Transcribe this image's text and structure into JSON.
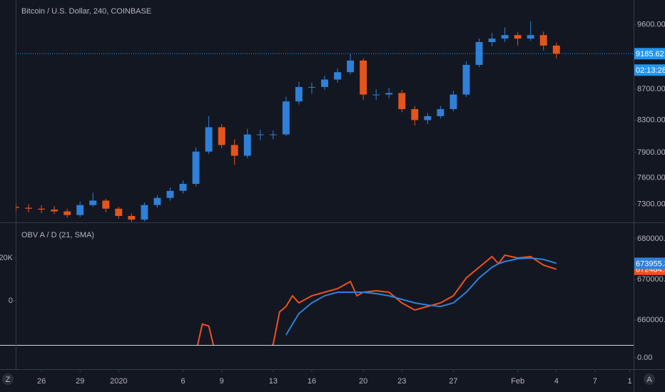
{
  "chart_data": [
    {
      "type": "candlestick",
      "title": "Bitcoin / U.S. Dollar, 240, COINBASE",
      "log_scale": true,
      "up_color": "#2f80d8",
      "down_color": "#e5541b",
      "x": [
        -2,
        -1,
        0,
        1,
        2,
        3,
        4,
        5,
        6,
        7,
        8,
        9,
        10,
        11,
        12,
        13,
        14,
        15,
        16,
        17,
        18,
        19,
        20,
        21,
        22,
        23,
        24,
        25,
        26,
        27,
        28,
        29,
        30,
        31,
        32,
        33,
        34,
        35,
        36,
        37,
        38,
        39,
        40
      ],
      "open": [
        7270,
        7260,
        7250,
        7240,
        7220,
        7180,
        7290,
        7340,
        7250,
        7170,
        7130,
        7290,
        7370,
        7450,
        7530,
        7910,
        8210,
        7990,
        7860,
        8120,
        8120,
        8120,
        8540,
        8730,
        8730,
        8830,
        8930,
        9090,
        8630,
        8630,
        8650,
        8440,
        8300,
        8350,
        8440,
        8630,
        9030,
        9350,
        9400,
        9450,
        9400,
        9450,
        9300
      ],
      "high": [
        7310,
        7300,
        7290,
        7280,
        7250,
        7330,
        7430,
        7360,
        7270,
        7200,
        7320,
        7400,
        7490,
        7570,
        7960,
        8350,
        8250,
        8060,
        8190,
        8180,
        8170,
        8600,
        8800,
        8790,
        8880,
        8980,
        9180,
        9120,
        8700,
        8720,
        8690,
        8480,
        8390,
        8480,
        8680,
        9080,
        9400,
        9480,
        9560,
        9490,
        9650,
        9500,
        9340
      ],
      "low": [
        7220,
        7210,
        7200,
        7190,
        7150,
        7160,
        7270,
        7210,
        7140,
        7105,
        7110,
        7260,
        7340,
        7420,
        7500,
        7880,
        7950,
        7750,
        7830,
        8050,
        8060,
        8100,
        8500,
        8640,
        8690,
        8790,
        8900,
        8560,
        8560,
        8580,
        8400,
        8230,
        8250,
        8320,
        8410,
        8600,
        9000,
        9290,
        9350,
        9300,
        9370,
        9230,
        9120
      ],
      "close": [
        7260,
        7250,
        7240,
        7220,
        7180,
        7290,
        7340,
        7250,
        7170,
        7130,
        7290,
        7370,
        7450,
        7530,
        7910,
        8210,
        7990,
        7860,
        8120,
        8120,
        8120,
        8540,
        8730,
        8730,
        8830,
        8930,
        9090,
        8630,
        8630,
        8650,
        8440,
        8300,
        8350,
        8440,
        8630,
        9030,
        9350,
        9400,
        9450,
        9400,
        9450,
        9300,
        9185.62
      ],
      "xlim": [
        -2,
        46
      ],
      "ylim": [
        7100,
        9970
      ],
      "xticks": [
        {
          "value": 0,
          "label": "26"
        },
        {
          "value": 3,
          "label": "29"
        },
        {
          "value": 6,
          "label": "2020"
        },
        {
          "value": 11,
          "label": "6"
        },
        {
          "value": 14,
          "label": "9"
        },
        {
          "value": 18,
          "label": "13"
        },
        {
          "value": 21,
          "label": "16"
        },
        {
          "value": 25,
          "label": "20"
        },
        {
          "value": 28,
          "label": "23"
        },
        {
          "value": 32,
          "label": "27"
        },
        {
          "value": 37,
          "label": "Feb"
        },
        {
          "value": 40,
          "label": "4"
        },
        {
          "value": 43,
          "label": "7"
        },
        {
          "value": 45.7,
          "label": "1"
        }
      ],
      "yticks": [
        {
          "value": 7300,
          "label": "7300.00"
        },
        {
          "value": 7600,
          "label": "7600.00"
        },
        {
          "value": 7900,
          "label": "7900.00"
        },
        {
          "value": 8300,
          "label": "8300.00"
        },
        {
          "value": 8700,
          "label": "8700.00"
        },
        {
          "value": 9600,
          "label": "9600.00"
        }
      ],
      "price_line": {
        "value": 9185.62,
        "label": "9185.62",
        "color": "#2196f3"
      },
      "countdown": "02:13:28"
    },
    {
      "type": "line",
      "title": "OBV A / D (21, SMA)",
      "x": [
        12,
        12.5,
        13,
        13.5,
        14,
        15,
        16,
        17,
        18,
        18.5,
        19,
        19.5,
        20,
        21,
        22,
        23,
        24,
        24.5,
        25,
        26,
        27,
        28,
        29,
        30,
        31,
        32,
        33,
        34,
        35,
        35.5,
        36,
        37,
        38,
        39,
        40
      ],
      "series": [
        {
          "name": "OBV",
          "color": "#f0501e",
          "values": [
            652000,
            659000,
            658500,
            652000,
            650000,
            651000,
            651000,
            651000,
            654000,
            662000,
            663330,
            665960,
            664210,
            665960,
            666840,
            667720,
            669470,
            665960,
            666840,
            667200,
            666840,
            664210,
            662460,
            663330,
            664210,
            665960,
            670350,
            672980,
            675610,
            673860,
            675960,
            675260,
            675610,
            673510,
            672484.9
          ],
          "value_labels": [
            null,
            null,
            null,
            null,
            null,
            null,
            null,
            null,
            null,
            null,
            null,
            null,
            null,
            null,
            null,
            null,
            null,
            null,
            null,
            null,
            null,
            null,
            null,
            null,
            null,
            null,
            null,
            null,
            null,
            null,
            null,
            null,
            null,
            null,
            "672484.90"
          ]
        },
        {
          "name": "SMA",
          "color": "#2f80d8",
          "values": [
            null,
            null,
            null,
            null,
            null,
            null,
            null,
            null,
            null,
            null,
            656320,
            659000,
            661580,
            664210,
            665960,
            666840,
            666840,
            666840,
            666840,
            666490,
            665960,
            665090,
            664210,
            663680,
            663330,
            664210,
            666840,
            670350,
            672980,
            673860,
            674380,
            675090,
            675260,
            674910,
            673955.33
          ],
          "value_labels": [
            null,
            null,
            null,
            null,
            null,
            null,
            null,
            null,
            null,
            null,
            null,
            null,
            null,
            null,
            null,
            null,
            null,
            null,
            null,
            null,
            null,
            null,
            null,
            null,
            null,
            null,
            null,
            null,
            null,
            null,
            null,
            null,
            null,
            null,
            "673955.33"
          ]
        }
      ],
      "xlim": [
        -2,
        46
      ],
      "ylim": [
        653860,
        682980
      ],
      "yticks": [
        {
          "value": 660000,
          "label": "660000.00"
        },
        {
          "value": 670000,
          "label": "670000.00"
        },
        {
          "value": 680000,
          "label": "680000.00"
        }
      ],
      "y2lim": [
        -20667,
        34667
      ],
      "y2ticks": [
        {
          "value": 20000,
          "label": "20K"
        },
        0
      ]
    },
    {
      "type": "line",
      "series": [],
      "ylim": [
        -1,
        1
      ],
      "yticks": [
        {
          "value": 0,
          "label": "0.00"
        }
      ]
    }
  ]
}
